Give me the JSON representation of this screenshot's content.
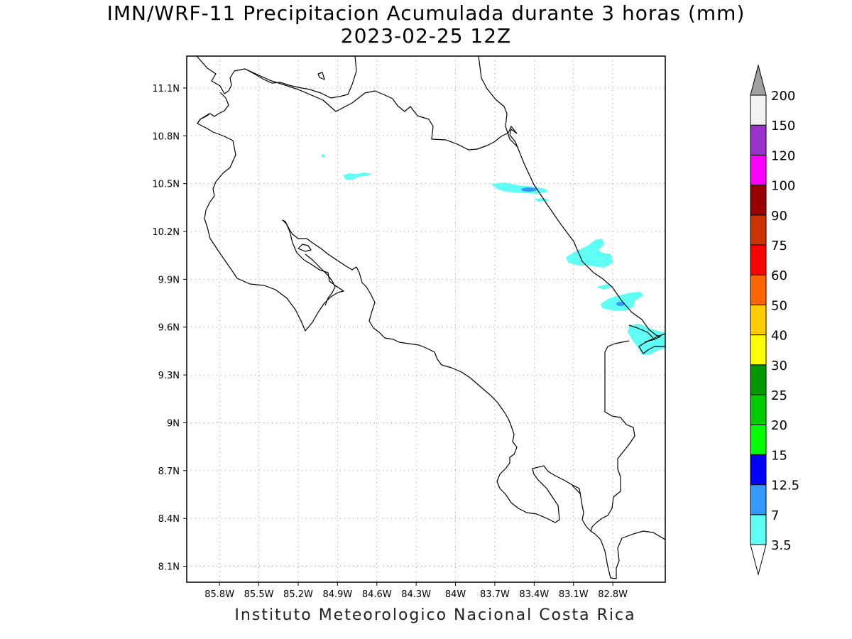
{
  "title_line1": "IMN/WRF-11 Precipitacion Acumulada durante 3 horas (mm)",
  "title_line2": "2023-02-25 12Z",
  "credit": "Instituto Meteorologico Nacional Costa Rica",
  "map": {
    "lon_range": [
      -86.05,
      -82.4
    ],
    "lat_range": [
      8.0,
      11.3
    ],
    "lon_ticks": [
      {
        "value": -85.8,
        "label": "85.8W"
      },
      {
        "value": -85.5,
        "label": "85.5W"
      },
      {
        "value": -85.2,
        "label": "85.2W"
      },
      {
        "value": -84.9,
        "label": "84.9W"
      },
      {
        "value": -84.6,
        "label": "84.6W"
      },
      {
        "value": -84.3,
        "label": "84.3W"
      },
      {
        "value": -84.0,
        "label": "84W"
      },
      {
        "value": -83.7,
        "label": "83.7W"
      },
      {
        "value": -83.4,
        "label": "83.4W"
      },
      {
        "value": -83.1,
        "label": "83.1W"
      },
      {
        "value": -82.8,
        "label": "82.8W"
      }
    ],
    "lat_ticks": [
      {
        "value": 11.1,
        "label": "11.1N"
      },
      {
        "value": 10.8,
        "label": "10.8N"
      },
      {
        "value": 10.5,
        "label": "10.5N"
      },
      {
        "value": 10.2,
        "label": "10.2N"
      },
      {
        "value": 9.9,
        "label": "9.9N"
      },
      {
        "value": 9.6,
        "label": "9.6N"
      },
      {
        "value": 9.3,
        "label": "9.3N"
      },
      {
        "value": 9.0,
        "label": "9N"
      },
      {
        "value": 8.7,
        "label": "8.7N"
      },
      {
        "value": 8.4,
        "label": "8.4N"
      },
      {
        "value": 8.1,
        "label": "8.1N"
      }
    ],
    "grid": true
  },
  "colorbar": {
    "labels": [
      "3.5",
      "7",
      "12.5",
      "15",
      "20",
      "25",
      "30",
      "40",
      "50",
      "60",
      "75",
      "90",
      "100",
      "120",
      "150",
      "200"
    ],
    "colors": [
      "#5ffff5",
      "#3399ff",
      "#0000ff",
      "#00ff00",
      "#00cc00",
      "#009900",
      "#ffff00",
      "#ffcc00",
      "#ff6600",
      "#ff0000",
      "#cc3300",
      "#990000",
      "#ff00ff",
      "#9933cc",
      "#f2f2f2"
    ],
    "over_color": "#a0a0a0",
    "under_color": "#ffffff"
  }
}
